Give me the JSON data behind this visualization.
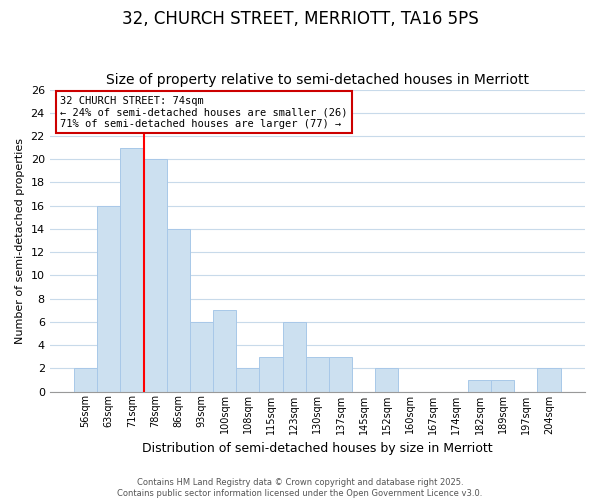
{
  "title": "32, CHURCH STREET, MERRIOTT, TA16 5PS",
  "subtitle": "Size of property relative to semi-detached houses in Merriott",
  "xlabel": "Distribution of semi-detached houses by size in Merriott",
  "ylabel": "Number of semi-detached properties",
  "categories": [
    "56sqm",
    "63sqm",
    "71sqm",
    "78sqm",
    "86sqm",
    "93sqm",
    "100sqm",
    "108sqm",
    "115sqm",
    "123sqm",
    "130sqm",
    "137sqm",
    "145sqm",
    "152sqm",
    "160sqm",
    "167sqm",
    "174sqm",
    "182sqm",
    "189sqm",
    "197sqm",
    "204sqm"
  ],
  "values": [
    2,
    16,
    21,
    20,
    14,
    6,
    7,
    2,
    3,
    6,
    3,
    3,
    0,
    2,
    0,
    0,
    0,
    1,
    1,
    0,
    2
  ],
  "bar_color": "#cce0f0",
  "bar_edge_color": "#a8c8e8",
  "red_line_x": 2.5,
  "annotation_text": "32 CHURCH STREET: 74sqm\n← 24% of semi-detached houses are smaller (26)\n71% of semi-detached houses are larger (77) →",
  "annotation_box_color": "#cc0000",
  "ylim": [
    0,
    26
  ],
  "yticks": [
    0,
    2,
    4,
    6,
    8,
    10,
    12,
    14,
    16,
    18,
    20,
    22,
    24,
    26
  ],
  "footnote1": "Contains HM Land Registry data © Crown copyright and database right 2025.",
  "footnote2": "Contains public sector information licensed under the Open Government Licence v3.0.",
  "background_color": "#ffffff",
  "grid_color": "#c8daea",
  "title_fontsize": 12,
  "subtitle_fontsize": 10,
  "ylabel_fontsize": 8,
  "xlabel_fontsize": 9
}
